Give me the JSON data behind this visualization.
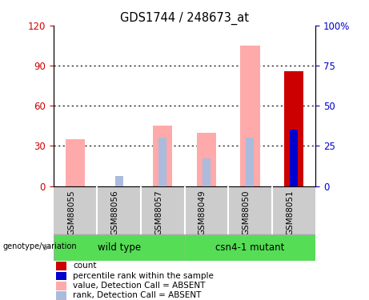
{
  "title": "GDS1744 / 248673_at",
  "categories": [
    "GSM88055",
    "GSM88056",
    "GSM88057",
    "GSM88049",
    "GSM88050",
    "GSM88051"
  ],
  "value_bars": [
    35,
    0,
    45,
    40,
    105,
    0
  ],
  "rank_bars": [
    0,
    6,
    30,
    17,
    30,
    0
  ],
  "count_bar_index": 5,
  "count_bar_value": 86,
  "count_bar_color": "#cc0000",
  "value_bar_color": "#ffaaaa",
  "rank_bar_color": "#aabbdd",
  "percentile_rank_index": 5,
  "percentile_rank_value": 35,
  "percentile_rank_color": "#0000cc",
  "left_ylim": [
    0,
    120
  ],
  "right_ylim": [
    0,
    100
  ],
  "left_yticks": [
    0,
    30,
    60,
    90,
    120
  ],
  "right_yticks": [
    0,
    25,
    50,
    75,
    100
  ],
  "left_yticklabels": [
    "0",
    "30",
    "60",
    "90",
    "120"
  ],
  "right_yticklabels": [
    "0",
    "25",
    "50",
    "75",
    "100%"
  ],
  "left_tick_color": "#cc0000",
  "right_tick_color": "#0000cc",
  "bar_width": 0.45,
  "rank_bar_width": 0.18,
  "label_area_color": "#cccccc",
  "group_area_color": "#55dd55",
  "group_border_color": "#aaaaaa",
  "wildtype_label": "wild type",
  "mutant_label": "csn4-1 mutant",
  "genotype_label": "genotype/variation",
  "legend_items": [
    {
      "label": "count",
      "color": "#cc0000"
    },
    {
      "label": "percentile rank within the sample",
      "color": "#0000cc"
    },
    {
      "label": "value, Detection Call = ABSENT",
      "color": "#ffaaaa"
    },
    {
      "label": "rank, Detection Call = ABSENT",
      "color": "#aabbdd"
    }
  ]
}
